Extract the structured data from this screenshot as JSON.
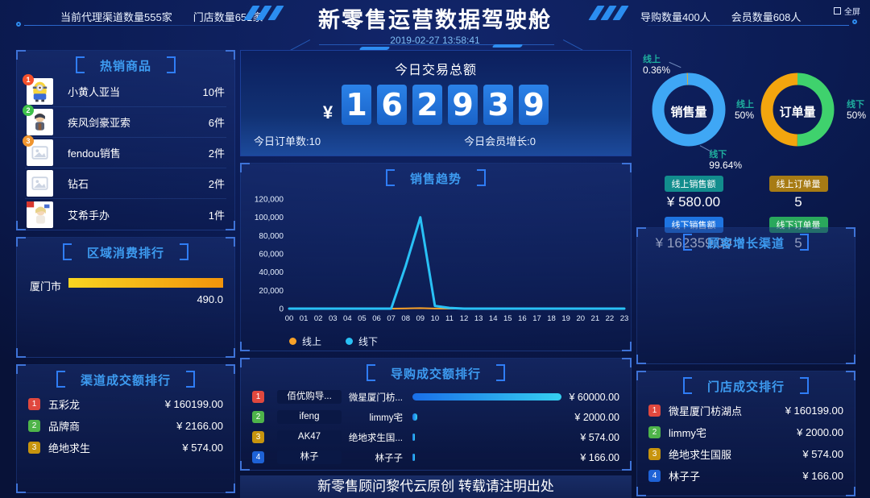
{
  "colors": {
    "accent": "#3d9bf0",
    "online": "#f7a128",
    "offline": "#29c1f5",
    "sales_ring": "#3fa7f5",
    "sales_sliver": "#f0ad1d",
    "orders_online": "#f3a50e",
    "orders_offline": "#3fd26d",
    "rank_colors": [
      "#e0483e",
      "#4eb44a",
      "#c7940e",
      "#1e62d6"
    ],
    "product_badge_colors": [
      "#f4502c",
      "#3fc14b",
      "#f0952f"
    ],
    "badge_online_sales": "#128d8d",
    "badge_online_orders": "#a77b14",
    "badge_offline_sales": "#1e74e0",
    "badge_offline_orders": "#2aa85c"
  },
  "header": {
    "left_stats": [
      "当前代理渠道数量555家",
      "门店数量651家"
    ],
    "title": "新零售运营数据驾驶舱",
    "timestamp": "2019-02-27 13:58:41",
    "right_stats": [
      "导购数量400人",
      "会员数量608人"
    ],
    "fullscreen_label": "全屏"
  },
  "hot_products": {
    "title": "热销商品",
    "items": [
      {
        "rank": "1",
        "name": "小黄人亚当",
        "count": "10件",
        "image": "minion-figure"
      },
      {
        "rank": "2",
        "name": "疾风剑豪亚索",
        "count": "6件",
        "image": "yasuo-figure"
      },
      {
        "rank": "3",
        "name": "fendou销售",
        "count": "2件",
        "image": "placeholder"
      },
      {
        "rank": "",
        "name": "钻石",
        "count": "2件",
        "image": "placeholder"
      },
      {
        "rank": "",
        "name": "艾希手办",
        "count": "1件",
        "image": "ashe-figure"
      }
    ]
  },
  "region_ranking": {
    "title": "区域消费排行",
    "rows": [
      {
        "name": "厦门市",
        "value_label": "490.0",
        "bar_pct": 100
      }
    ]
  },
  "channel_ranking": {
    "title": "渠道成交额排行",
    "rows": [
      {
        "rank": "1",
        "name": "五彩龙",
        "amount": "¥ 160199.00"
      },
      {
        "rank": "2",
        "name": "品牌商",
        "amount": "¥ 2166.00"
      },
      {
        "rank": "3",
        "name": "绝地求生",
        "amount": "¥ 574.00"
      }
    ]
  },
  "today": {
    "title": "今日交易总额",
    "currency": "¥",
    "digits": [
      "1",
      "6",
      "2",
      "9",
      "3",
      "9"
    ],
    "orders_label": "今日订单数:10",
    "members_label": "今日会员增长:0"
  },
  "guide_ranking": {
    "title": "导购成交额排行",
    "rows": [
      {
        "rank": "1",
        "name": "佰优购导...",
        "store": "微星厦门枋...",
        "amount": "¥ 60000.00",
        "bar_pct": 100
      },
      {
        "rank": "2",
        "name": "ifeng",
        "store": "limmy宅",
        "amount": "¥ 2000.00",
        "bar_pct": 3.3
      },
      {
        "rank": "3",
        "name": "AK47",
        "store": "绝地求生国...",
        "amount": "¥ 574.00",
        "bar_pct": 1
      },
      {
        "rank": "4",
        "name": "林子",
        "store": "林子子",
        "amount": "¥ 166.00",
        "bar_pct": 0.4
      }
    ]
  },
  "footer": "新零售顾问黎代云原创 转载请注明出处",
  "donuts": {
    "sales": {
      "center": "销售量",
      "online_label": "线上",
      "online_pct": "0.36%",
      "offline_label": "线下",
      "offline_pct": "99.64%"
    },
    "orders": {
      "center": "订单量",
      "online_label": "线上",
      "online_pct": "50%",
      "offline_label": "线下",
      "offline_pct": "50%"
    }
  },
  "stats": {
    "online_sales_label": "线上销售额",
    "online_sales_value": "¥ 580.00",
    "online_orders_label": "线上订单量",
    "online_orders_value": "5",
    "offline_sales_label": "线下销售额",
    "offline_sales_value": "¥ 162359.00",
    "offline_orders_label": "线下订单量",
    "offline_orders_value": "5"
  },
  "customer_growth": {
    "title": "顾客增长渠道"
  },
  "store_ranking": {
    "title": "门店成交排行",
    "rows": [
      {
        "rank": "1",
        "name": "微星厦门枋湖点",
        "amount": "¥ 160199.00"
      },
      {
        "rank": "2",
        "name": "limmy宅",
        "amount": "¥ 2000.00"
      },
      {
        "rank": "3",
        "name": "绝地求生国服",
        "amount": "¥ 574.00"
      },
      {
        "rank": "4",
        "name": "林子子",
        "amount": "¥ 166.00"
      }
    ]
  },
  "chart_data": [
    {
      "id": "sales_trend",
      "type": "line",
      "title": "销售趋势",
      "x": [
        "00",
        "01",
        "02",
        "03",
        "04",
        "05",
        "06",
        "07",
        "08",
        "09",
        "10",
        "11",
        "12",
        "13",
        "14",
        "15",
        "16",
        "17",
        "18",
        "19",
        "20",
        "21",
        "22",
        "23"
      ],
      "series": [
        {
          "name": "线上",
          "color": "#f7a128",
          "values": [
            0,
            0,
            0,
            0,
            0,
            0,
            0,
            0,
            250,
            580,
            150,
            0,
            0,
            0,
            0,
            0,
            0,
            0,
            0,
            0,
            0,
            0,
            0,
            0
          ]
        },
        {
          "name": "线下",
          "color": "#29c1f5",
          "values": [
            0,
            0,
            0,
            0,
            0,
            0,
            0,
            0,
            47000,
            100000,
            3000,
            800,
            0,
            0,
            0,
            0,
            0,
            0,
            0,
            0,
            0,
            0,
            0,
            0
          ]
        }
      ],
      "ylim": [
        0,
        120000
      ],
      "ytick_labels": [
        "0",
        "20,000",
        "40,000",
        "60,000",
        "80,000",
        "100,000",
        "120,000"
      ],
      "grid": false,
      "legend_position": "bottom"
    },
    {
      "id": "sales_share",
      "type": "pie",
      "title": "销售量",
      "slices": [
        {
          "label": "线上",
          "pct": 0.36,
          "color": "#f0ad1d"
        },
        {
          "label": "线下",
          "pct": 99.64,
          "color": "#3fa7f5"
        }
      ]
    },
    {
      "id": "orders_share",
      "type": "pie",
      "title": "订单量",
      "slices": [
        {
          "label": "线上",
          "pct": 50,
          "color": "#f3a50e"
        },
        {
          "label": "线下",
          "pct": 50,
          "color": "#3fd26d"
        }
      ]
    },
    {
      "id": "region_consumption",
      "type": "bar",
      "title": "区域消费排行",
      "categories": [
        "厦门市"
      ],
      "values": [
        490.0
      ]
    },
    {
      "id": "guide_amounts",
      "type": "bar",
      "title": "导购成交额排行",
      "categories": [
        "佰优购导...",
        "ifeng",
        "AK47",
        "林子"
      ],
      "values": [
        60000,
        2000,
        574,
        166
      ]
    }
  ]
}
